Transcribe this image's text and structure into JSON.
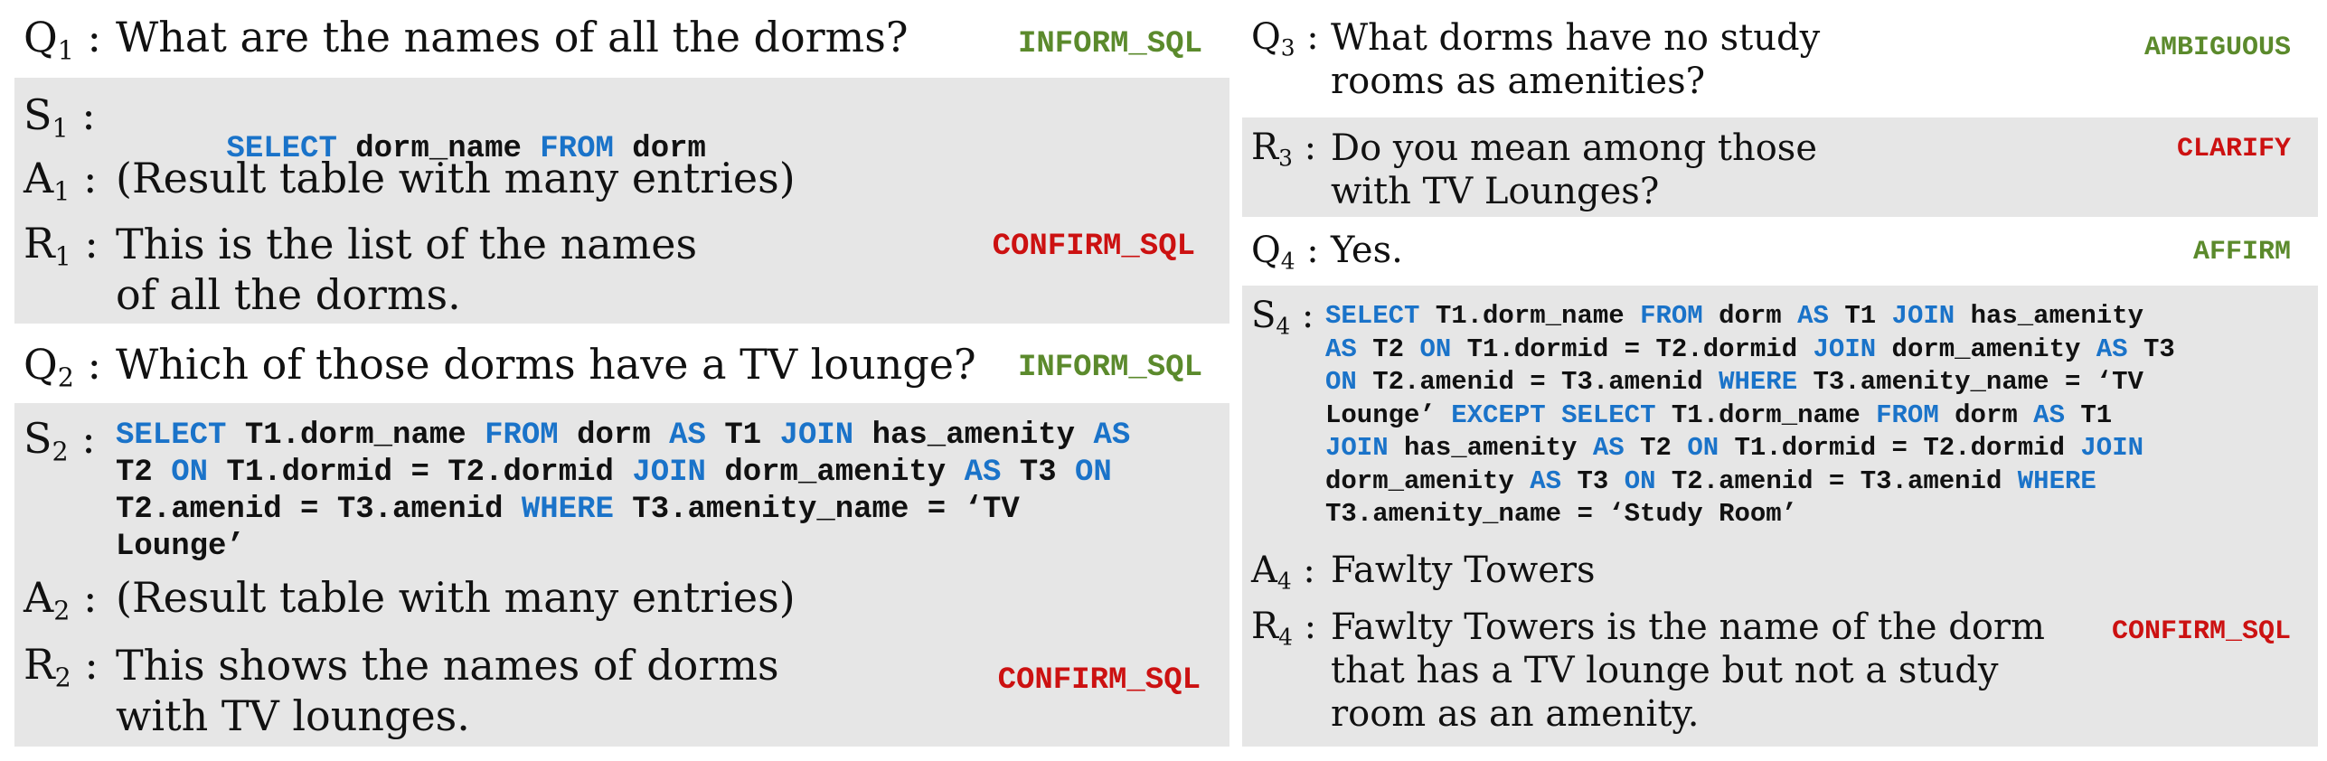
{
  "colors": {
    "panel_gray": "#e6e6e6",
    "keyword_blue": "#1a73c9",
    "tag_green": "#5b8a2c",
    "tag_red": "#cc1111"
  },
  "left": {
    "q1": {
      "label_letter": "Q",
      "label_num": "1",
      "text": "What are the names of all the dorms?",
      "tag": "INFORM_SQL"
    },
    "s1": {
      "label_letter": "S",
      "label_num": "1",
      "sql": [
        [
          "SELECT",
          " dorm_name "
        ],
        [
          "FROM",
          " dorm"
        ]
      ]
    },
    "a1": {
      "label_letter": "A",
      "label_num": "1",
      "text": "(Result table with many entries)"
    },
    "r1": {
      "label_letter": "R",
      "label_num": "1",
      "text": "This is the list of the names\nof all the dorms.",
      "tag": "CONFIRM_SQL"
    },
    "q2": {
      "label_letter": "Q",
      "label_num": "2",
      "text": "Which of those dorms have a TV lounge?",
      "tag": "INFORM_SQL"
    },
    "s2": {
      "label_letter": "S",
      "label_num": "2"
    },
    "a2": {
      "label_letter": "A",
      "label_num": "2",
      "text": "(Result table with many entries)"
    },
    "r2": {
      "label_letter": "R",
      "label_num": "2",
      "text": "This shows the names of dorms\nwith TV lounges.",
      "tag": "CONFIRM_SQL"
    }
  },
  "right": {
    "q3": {
      "label_letter": "Q",
      "label_num": "3",
      "text": "What dorms have no study\nrooms as amenities?",
      "tag": "AMBIGUOUS"
    },
    "r3": {
      "label_letter": "R",
      "label_num": "3",
      "text": "Do you mean among those\nwith TV Lounges?",
      "tag": "CLARIFY"
    },
    "q4": {
      "label_letter": "Q",
      "label_num": "4",
      "text": "Yes.",
      "tag": "AFFIRM"
    },
    "s4": {
      "label_letter": "S",
      "label_num": "4"
    },
    "a4": {
      "label_letter": "A",
      "label_num": "4",
      "text": "Fawlty Towers"
    },
    "r4": {
      "label_letter": "R",
      "label_num": "4",
      "text": "Fawlty Towers is the name of the dorm\nthat has a TV lounge but not a study\nroom as an amenity.",
      "tag": "CONFIRM_SQL"
    }
  },
  "sql_s2_lines": [
    [
      [
        "kw",
        "SELECT"
      ],
      [
        "t",
        " T1.dorm_name "
      ],
      [
        "kw",
        "FROM"
      ],
      [
        "t",
        " dorm "
      ],
      [
        "kw",
        "AS"
      ],
      [
        "t",
        " T1 "
      ],
      [
        "kw",
        "JOIN"
      ],
      [
        "t",
        " has_amenity "
      ],
      [
        "kw",
        "AS"
      ]
    ],
    [
      [
        "t",
        "T2 "
      ],
      [
        "kw",
        "ON"
      ],
      [
        "t",
        " T1.dormid = T2.dormid "
      ],
      [
        "kw",
        "JOIN"
      ],
      [
        "t",
        " dorm_amenity "
      ],
      [
        "kw",
        "AS"
      ],
      [
        "t",
        " T3 "
      ],
      [
        "kw",
        "ON"
      ]
    ],
    [
      [
        "t",
        "T2.amenid = T3.amenid "
      ],
      [
        "kw",
        "WHERE"
      ],
      [
        "t",
        " T3.amenity_name = ‘TV"
      ]
    ],
    [
      [
        "t",
        "Lounge’"
      ]
    ]
  ],
  "sql_s4_lines": [
    [
      [
        "kw",
        "SELECT"
      ],
      [
        "t",
        " T1.dorm_name "
      ],
      [
        "kw",
        "FROM"
      ],
      [
        "t",
        " dorm "
      ],
      [
        "kw",
        "AS"
      ],
      [
        "t",
        " T1 "
      ],
      [
        "kw",
        "JOIN"
      ],
      [
        "t",
        " has_amenity"
      ]
    ],
    [
      [
        "kw",
        "AS"
      ],
      [
        "t",
        " T2 "
      ],
      [
        "kw",
        "ON"
      ],
      [
        "t",
        " T1.dormid = T2.dormid "
      ],
      [
        "kw",
        "JOIN"
      ],
      [
        "t",
        " dorm_amenity "
      ],
      [
        "kw",
        "AS"
      ],
      [
        "t",
        " T3"
      ]
    ],
    [
      [
        "kw",
        "ON"
      ],
      [
        "t",
        " T2.amenid = T3.amenid "
      ],
      [
        "kw",
        "WHERE"
      ],
      [
        "t",
        " T3.amenity_name = ‘TV"
      ]
    ],
    [
      [
        "t",
        "Lounge’ "
      ],
      [
        "kw",
        "EXCEPT"
      ],
      [
        "t",
        " "
      ],
      [
        "kw",
        "SELECT"
      ],
      [
        "t",
        " T1.dorm_name "
      ],
      [
        "kw",
        "FROM"
      ],
      [
        "t",
        " dorm "
      ],
      [
        "kw",
        "AS"
      ],
      [
        "t",
        " T1"
      ]
    ],
    [
      [
        "kw",
        "JOIN"
      ],
      [
        "t",
        " has_amenity "
      ],
      [
        "kw",
        "AS"
      ],
      [
        "t",
        " T2 "
      ],
      [
        "kw",
        "ON"
      ],
      [
        "t",
        " T1.dormid = T2.dormid "
      ],
      [
        "kw",
        "JOIN"
      ]
    ],
    [
      [
        "t",
        "dorm_amenity "
      ],
      [
        "kw",
        "AS"
      ],
      [
        "t",
        " T3 "
      ],
      [
        "kw",
        "ON"
      ],
      [
        "t",
        " T2.amenid = T3.amenid "
      ],
      [
        "kw",
        "WHERE"
      ]
    ],
    [
      [
        "t",
        "T3.amenity_name = ‘Study Room’"
      ]
    ]
  ]
}
